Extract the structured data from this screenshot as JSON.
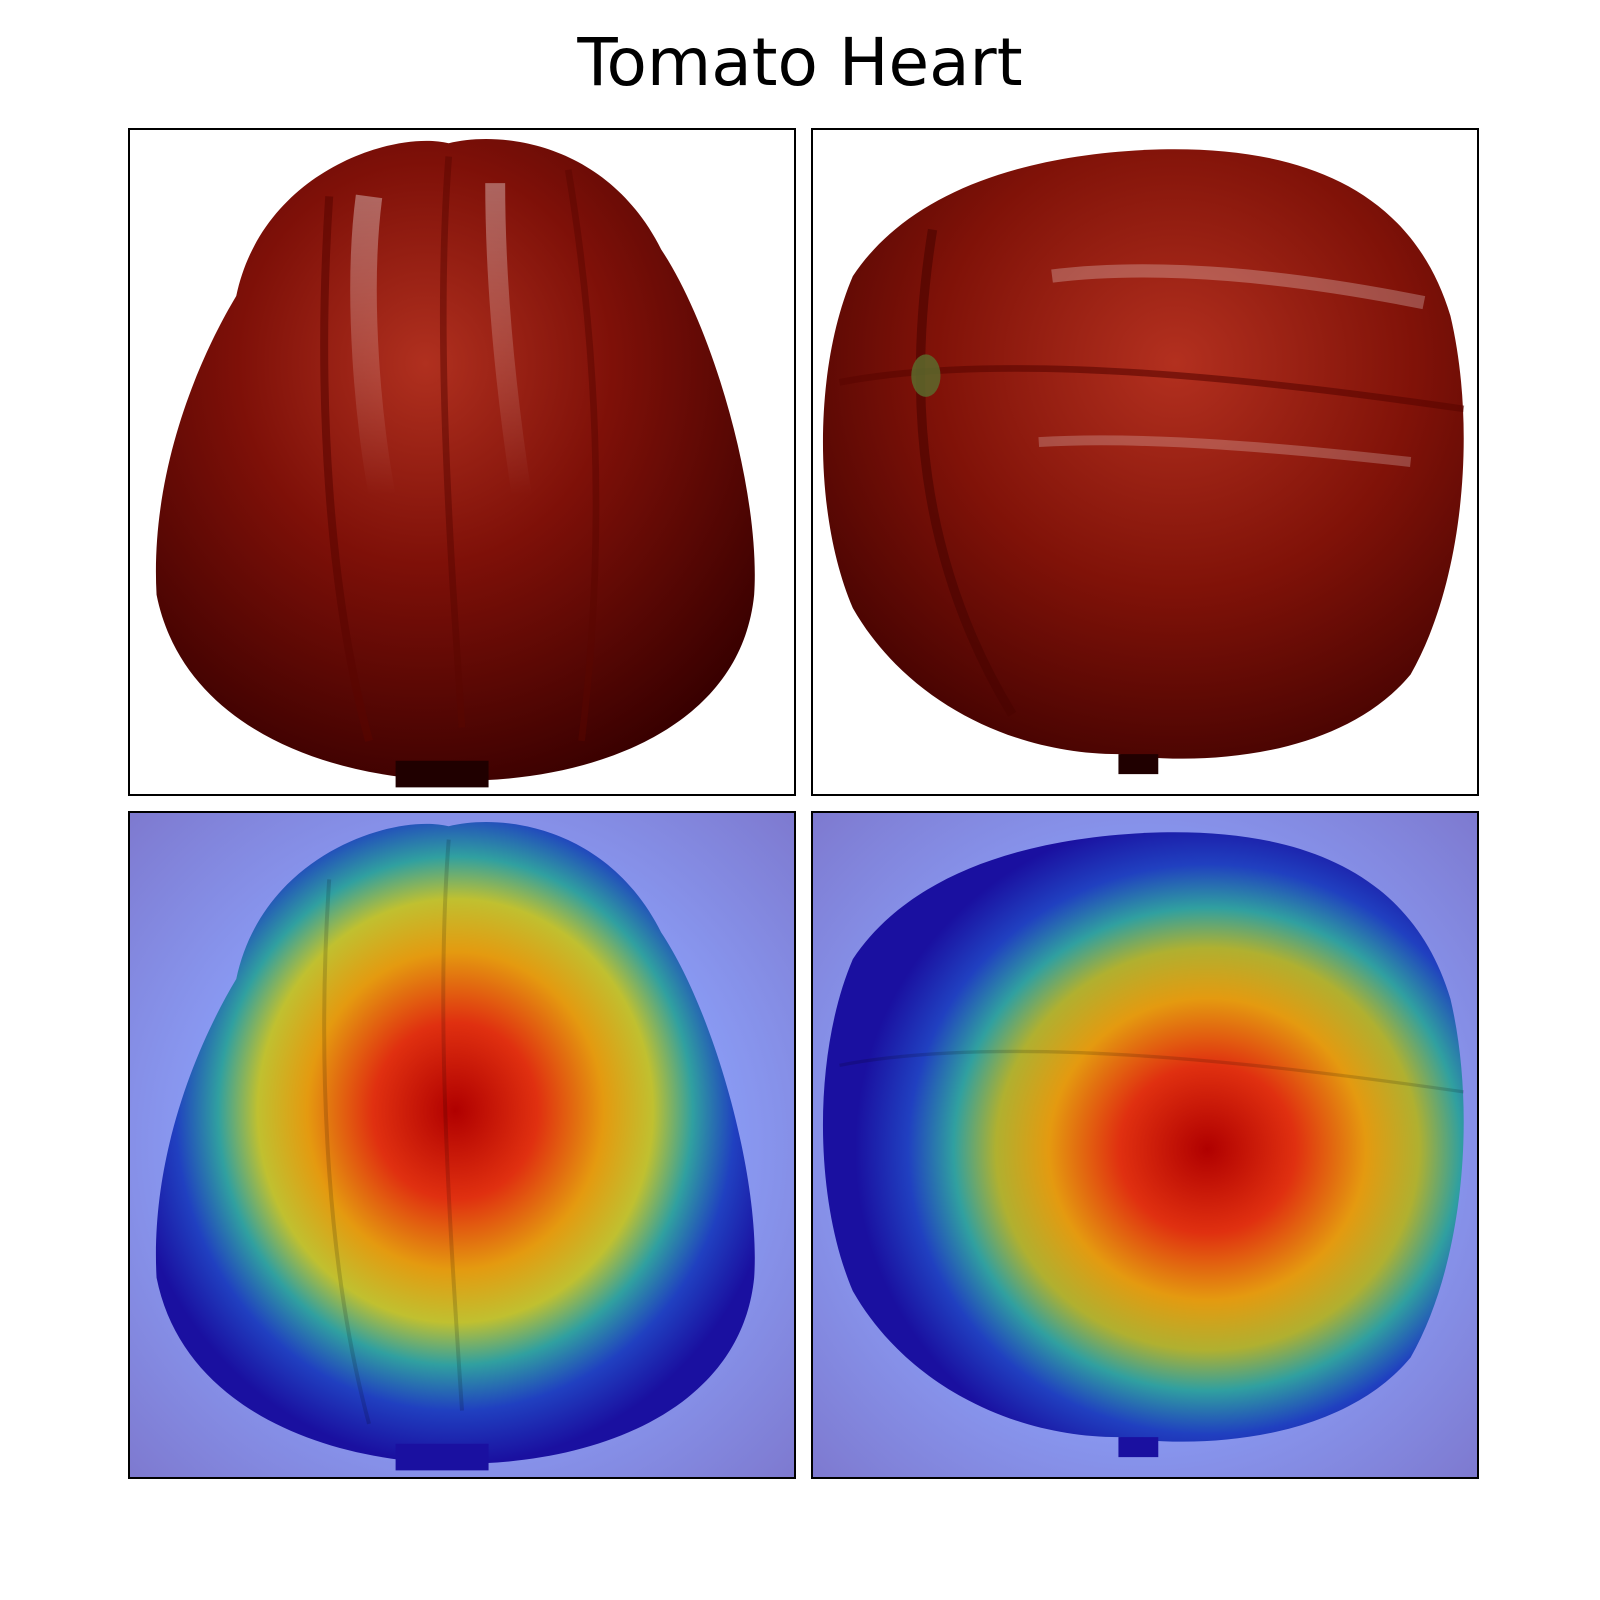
{
  "title": "Tomato Heart",
  "panels": [
    {
      "row": 1,
      "col": 1,
      "content": "photo",
      "view": "side-upright"
    },
    {
      "row": 1,
      "col": 2,
      "content": "photo",
      "view": "side-tilted"
    },
    {
      "row": 2,
      "col": 1,
      "content": "heatmap-overlay",
      "view": "side-upright"
    },
    {
      "row": 2,
      "col": 2,
      "content": "heatmap-overlay",
      "view": "side-tilted"
    }
  ],
  "colors": {
    "tomato_dark": "#3a0000",
    "tomato_mid": "#8e1a10",
    "heatmap_background": "#7e7ce0",
    "heatmap_peak": "#c00000",
    "frame": "#000000"
  }
}
